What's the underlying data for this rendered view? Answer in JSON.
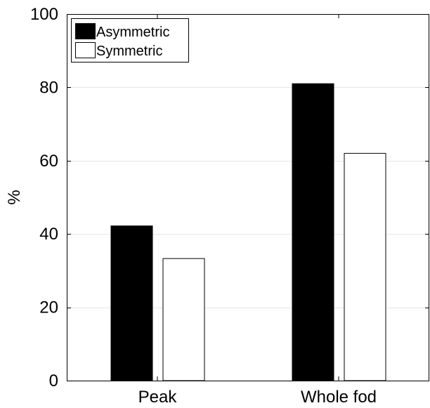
{
  "chart_data": {
    "type": "bar",
    "categories": [
      "Peak",
      "Whole fod"
    ],
    "series": [
      {
        "name": "Asymmetric",
        "values": [
          42.2,
          81.0
        ],
        "color": "#000000"
      },
      {
        "name": "Symmetric",
        "values": [
          33.3,
          62.0
        ],
        "color": "#ffffff"
      }
    ],
    "xlabel": "",
    "ylabel": "%",
    "ylim": [
      0,
      100
    ],
    "yticks": [
      0,
      20,
      40,
      60,
      80,
      100
    ],
    "grid": true,
    "legend_position": "top-left"
  }
}
